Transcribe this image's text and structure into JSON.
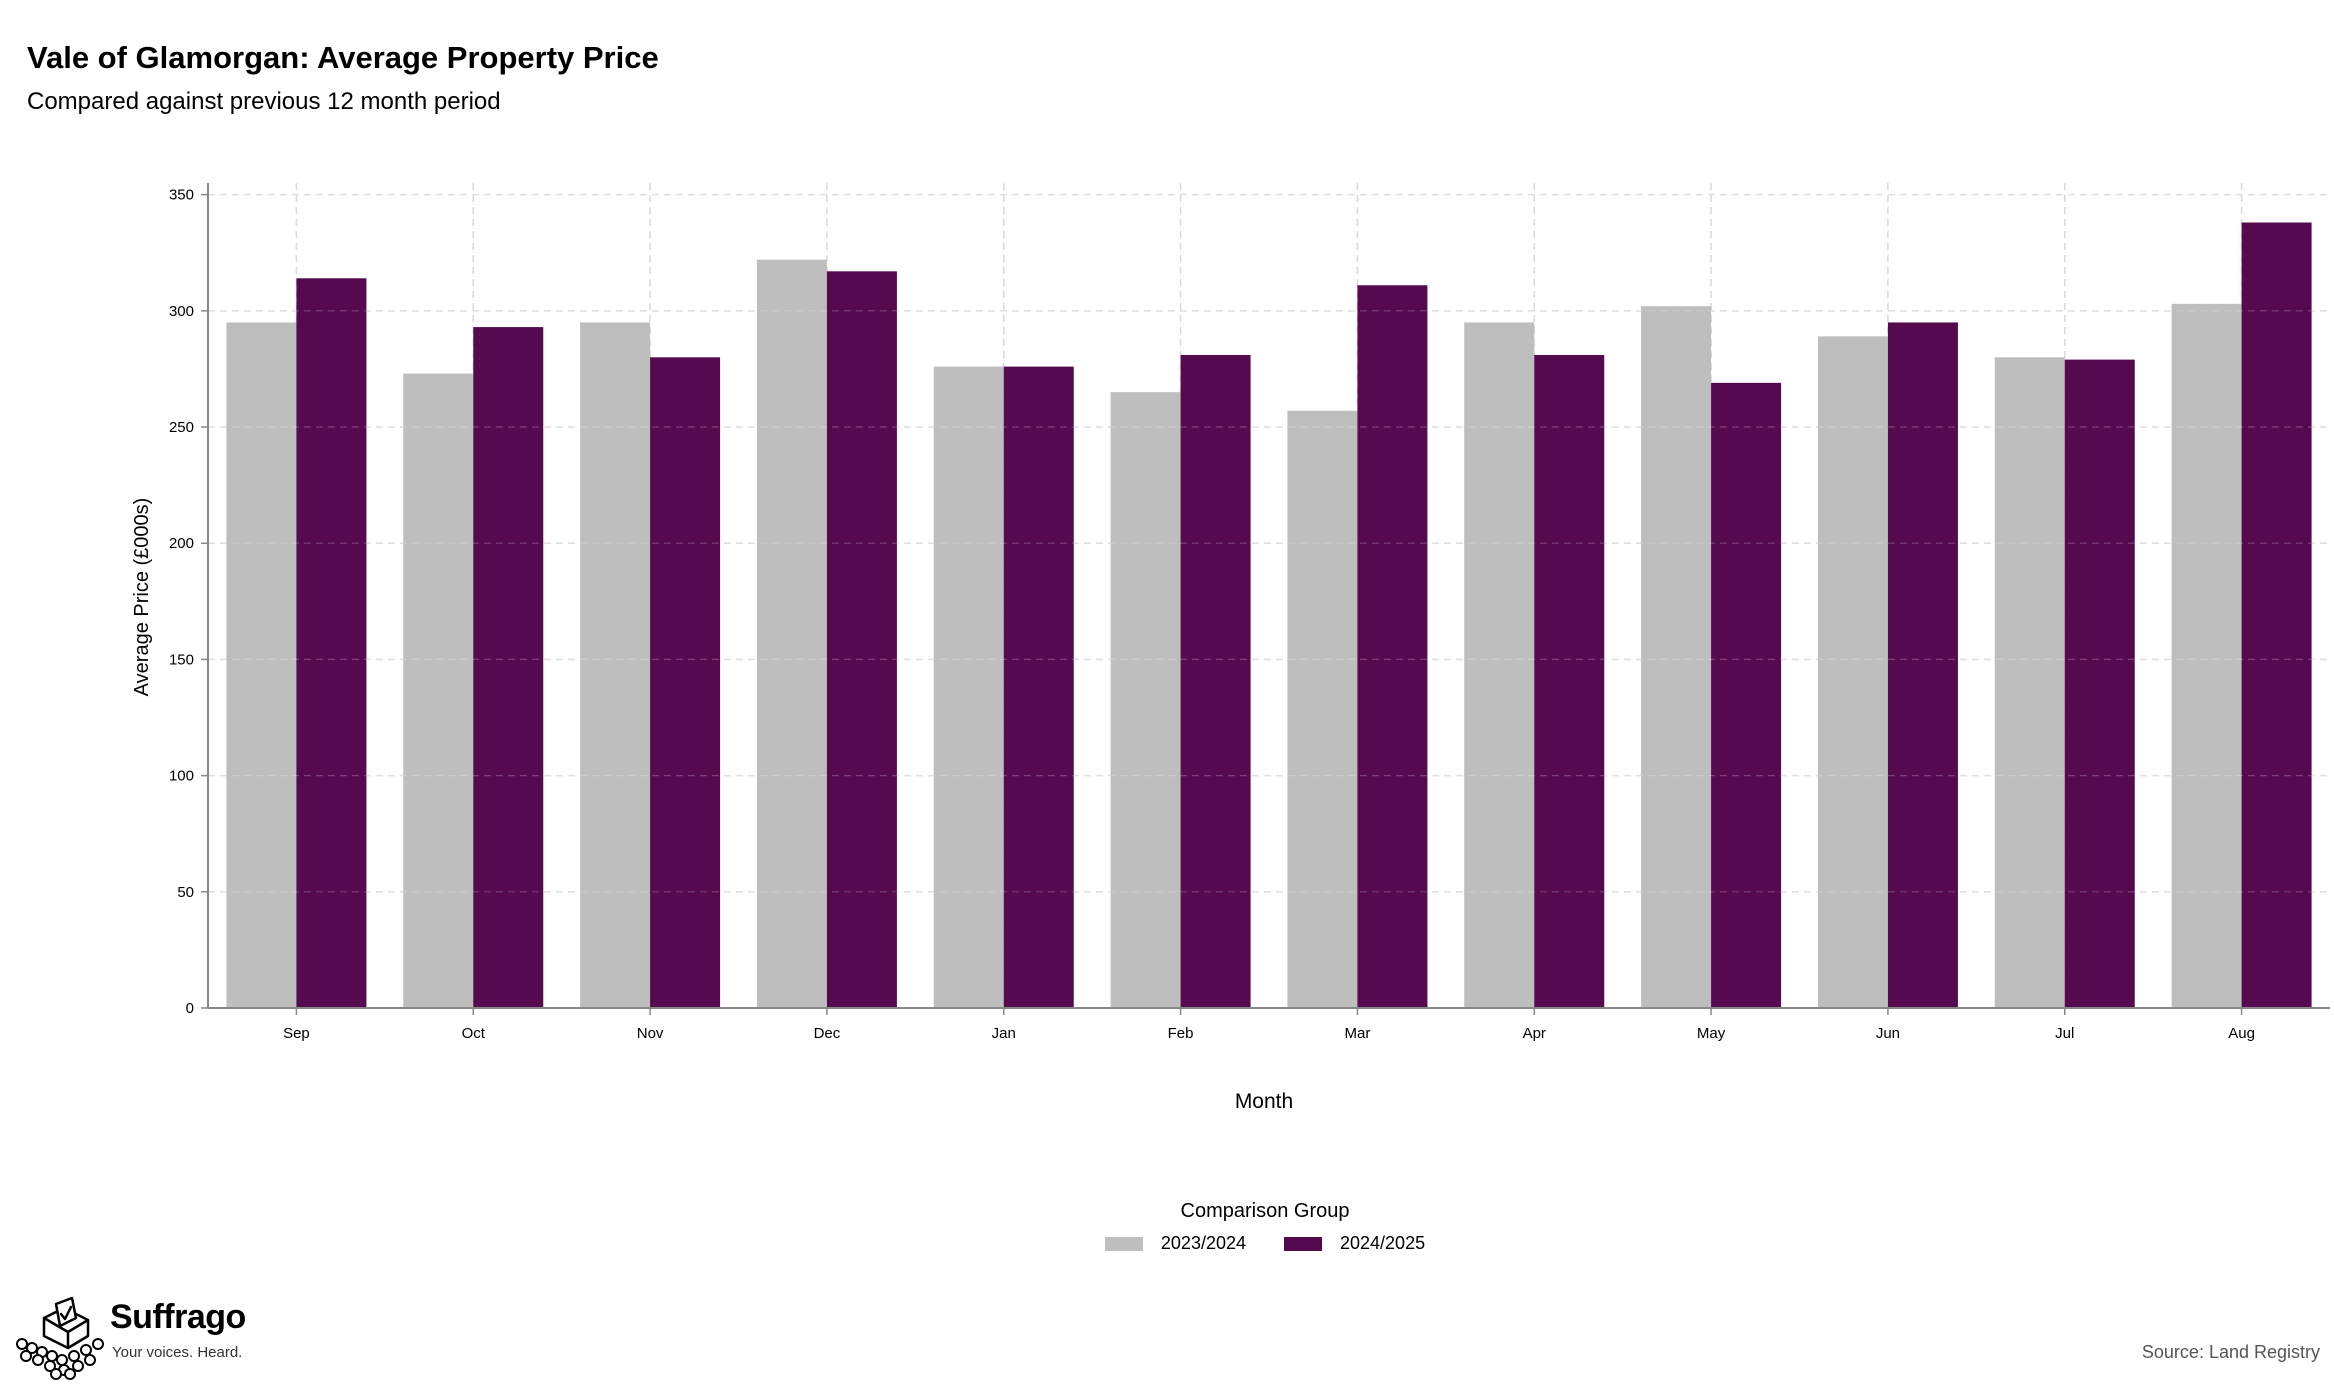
{
  "title": "Vale of Glamorgan: Average Property Price",
  "subtitle": "Compared against previous 12 month period",
  "legend": {
    "title": "Comparison Group",
    "items": [
      {
        "label": "2023/2024",
        "color": "#bebebe"
      },
      {
        "label": "2024/2025",
        "color": "#550a50"
      }
    ]
  },
  "brand": {
    "name": "Suffrago",
    "tagline": "Your voices. Heard."
  },
  "source": "Source: Land Registry",
  "chart_data": {
    "type": "bar",
    "xlabel": "Month",
    "ylabel": "Average Price (£000s)",
    "ylim": [
      0,
      355
    ],
    "yticks": [
      0,
      50,
      100,
      150,
      200,
      250,
      300,
      350
    ],
    "grid": true,
    "legend_position": "bottom",
    "categories": [
      "Sep",
      "Oct",
      "Nov",
      "Dec",
      "Jan",
      "Feb",
      "Mar",
      "Apr",
      "May",
      "Jun",
      "Jul",
      "Aug"
    ],
    "series": [
      {
        "name": "2023/2024",
        "color": "#bebebe",
        "values": [
          295,
          273,
          295,
          322,
          276,
          265,
          257,
          295,
          302,
          289,
          280,
          303
        ]
      },
      {
        "name": "2024/2025",
        "color": "#550a50",
        "values": [
          314,
          293,
          280,
          317,
          276,
          281,
          311,
          281,
          269,
          295,
          279,
          338
        ]
      }
    ]
  }
}
